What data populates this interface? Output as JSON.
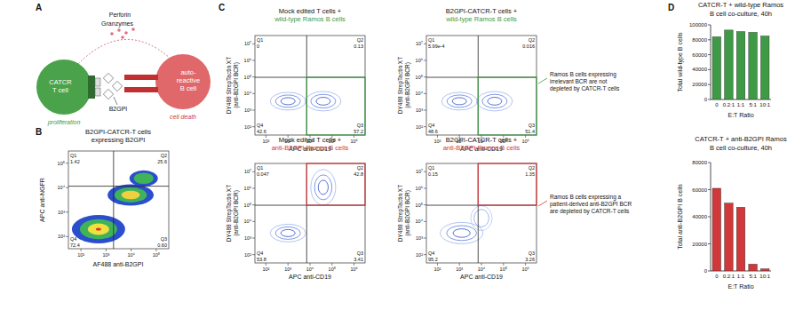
{
  "panel_a": {
    "letter": "A",
    "perforin": "Perforin",
    "granzymes": "Granzymes",
    "t_cell": [
      "CATCR",
      "T cell"
    ],
    "b_cell": [
      "auto-",
      "reactive",
      "B cell"
    ],
    "antigen": "B2GPI",
    "t_fate": "proliferation",
    "b_fate": "cell death"
  },
  "panel_b": {
    "letter": "B",
    "title": [
      "B2GPI-CATCR-T cells",
      "expressing B2GPI"
    ],
    "y_label": "APC anti-NGFR",
    "x_label": "AF488 anti-B2GPI",
    "y_ticks": [
      "10²",
      "10³",
      "10⁴",
      "10⁵"
    ],
    "x_ticks": [
      "10²",
      "10³",
      "10⁴",
      "10⁵"
    ],
    "quadrants": [
      [
        "Q1",
        "1.42"
      ],
      [
        "Q2",
        "25.6"
      ],
      [
        "Q3",
        "0.60"
      ],
      [
        "Q4",
        "72.4"
      ]
    ]
  },
  "panel_c": {
    "letter": "C",
    "y_label": [
      "DY488 StrepTactin XT",
      "(anti-B2GPI BCR)"
    ],
    "x_label": "APC anti-CD19",
    "y_ticks": [
      "10²",
      "10³",
      "10⁴",
      "10⁵",
      "10⁶",
      "10⁷"
    ],
    "x_ticks": [
      "10²",
      "10³",
      "10⁴",
      "10⁵",
      "10⁶"
    ],
    "plots": [
      {
        "title": "Mock edited T cells +",
        "target": "wild-type Ramos B cells",
        "color": "#3f9a45",
        "gate": "Q3",
        "quadrants": [
          [
            "Q1",
            "0"
          ],
          [
            "Q2",
            "0.13"
          ],
          [
            "Q3",
            "57.2"
          ],
          [
            "Q4",
            "42.6"
          ]
        ]
      },
      {
        "title": "B2GPI-CATCR-T cells +",
        "target": "wild-type Ramos B cells",
        "color": "#3f9a45",
        "gate": "Q3",
        "quadrants": [
          [
            "Q1",
            "5.99e-4"
          ],
          [
            "Q2",
            "0.016"
          ],
          [
            "Q3",
            "51.4"
          ],
          [
            "Q4",
            "48.6"
          ]
        ]
      },
      {
        "title": "Mock edited T cells +",
        "target": "anti-B2GPI Ramos B cells",
        "color": "#d0383a",
        "gate": "Q2",
        "quadrants": [
          [
            "Q1",
            "0.047"
          ],
          [
            "Q2",
            "42.8"
          ],
          [
            "Q3",
            "3.41"
          ],
          [
            "Q4",
            "53.8"
          ]
        ]
      },
      {
        "title": "B2GPI-CATCR-T cells +",
        "target": "anti-B2GPI Ramos B cells",
        "color": "#d0383a",
        "gate": "Q2",
        "quadrants": [
          [
            "Q1",
            "0.15"
          ],
          [
            "Q2",
            "1.35"
          ],
          [
            "Q3",
            "3.26"
          ],
          [
            "Q4",
            "95.2"
          ]
        ]
      }
    ],
    "annotations": [
      [
        "Ramos B cells expressing",
        "irrelevant BCR are not",
        "depleted by CATCR-T cells"
      ],
      [
        "Ramos B cells expressing a",
        "patient-derived anti-B2GPI BCR",
        "are depleted by CATCR-T cells"
      ]
    ]
  },
  "panel_d": {
    "letter": "D"
  },
  "chart_data": [
    {
      "type": "bar",
      "title": [
        "CATCR-T + wild-type Ramos",
        "B cell co-culture, 40h"
      ],
      "x_label": "E:T Ratio",
      "y_label": "Total wild-type B cells",
      "categories": [
        "0",
        "0.2:1",
        "1:1",
        "5:1",
        "10:1"
      ],
      "values": [
        84000,
        93000,
        91000,
        90000,
        85000
      ],
      "color": "#3f9a45",
      "ylim": [
        0,
        100000
      ],
      "yticks": [
        0,
        20000,
        40000,
        60000,
        80000,
        100000
      ],
      "grid": false
    },
    {
      "type": "bar",
      "title": [
        "CATCR-T + anti-B2GPI Ramos",
        "B cell co-culture, 40h"
      ],
      "x_label": "E:T Ratio",
      "y_label": "Total anti-B2GPI B cells",
      "categories": [
        "0",
        "0.2:1",
        "1:1",
        "5:1",
        "10:1"
      ],
      "values": [
        61000,
        50000,
        47000,
        5000,
        1500
      ],
      "color": "#d0383a",
      "ylim": [
        0,
        80000
      ],
      "yticks": [
        0,
        20000,
        40000,
        60000,
        80000
      ],
      "grid": false
    }
  ]
}
